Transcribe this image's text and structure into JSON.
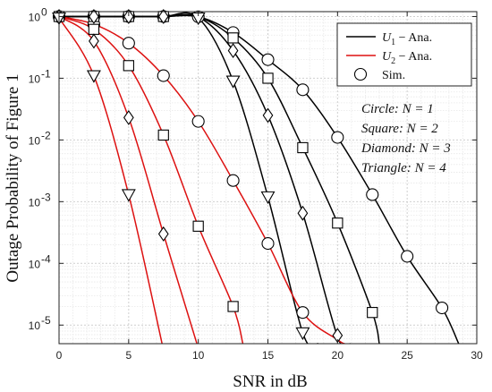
{
  "chart_data": {
    "type": "line",
    "title": "",
    "xlabel": "SNR in dB",
    "ylabel": "Outage Probability of Figure 1",
    "xlim": [
      0,
      30
    ],
    "ylim": [
      5e-06,
      1.2
    ],
    "yscale": "log",
    "grid": true,
    "legend_position": "top-right",
    "x_ticks": [
      "0",
      "5",
      "10",
      "15",
      "20",
      "25",
      "30"
    ],
    "y_ticks": [
      {
        "mant": "10",
        "exp": "0"
      },
      {
        "mant": "10",
        "exp": "-1"
      },
      {
        "mant": "10",
        "exp": "-2"
      },
      {
        "mant": "10",
        "exp": "-3"
      },
      {
        "mant": "10",
        "exp": "-4"
      },
      {
        "mant": "10",
        "exp": "-5"
      }
    ],
    "legend": [
      {
        "label": "U1 − Ana.",
        "sym": "U",
        "sub": "1",
        "rest": " − Ana.",
        "style": "line",
        "color": "#000000"
      },
      {
        "label": "U2 − Ana.",
        "sym": "U",
        "sub": "2",
        "rest": " − Ana.",
        "style": "line",
        "color": "#dd1111"
      },
      {
        "label": "Sim.",
        "sym": "",
        "sub": "",
        "rest": "Sim.",
        "style": "marker",
        "color": "#000000"
      }
    ],
    "annotations": [
      "Circle: N = 1",
      "Square: N = 2",
      "Diamond: N = 3",
      "Triangle: N = 4"
    ],
    "series": [
      {
        "user": "U1",
        "N": 1,
        "marker": "circle",
        "color": "#000000",
        "x": [
          0,
          2.5,
          5,
          7.5,
          10,
          12.5,
          15,
          17.5,
          20,
          22.5,
          25,
          27.5,
          28.7
        ],
        "y": [
          1,
          1,
          1,
          1,
          0.99,
          0.55,
          0.2,
          0.065,
          0.011,
          0.0013,
          0.00013,
          1.9e-05,
          5e-06
        ]
      },
      {
        "user": "U1",
        "N": 2,
        "marker": "square",
        "color": "#000000",
        "x": [
          0,
          2.5,
          5,
          7.5,
          10,
          12.5,
          15,
          17.5,
          20,
          22.5,
          23
        ],
        "y": [
          1,
          1,
          1,
          1,
          0.98,
          0.45,
          0.1,
          0.0075,
          0.00045,
          1.6e-05,
          5e-06
        ]
      },
      {
        "user": "U1",
        "N": 3,
        "marker": "diamond",
        "color": "#000000",
        "x": [
          0,
          2.5,
          5,
          7.5,
          10,
          12.5,
          15,
          17.5,
          20,
          20.9
        ],
        "y": [
          1,
          1,
          1,
          1,
          0.98,
          0.28,
          0.025,
          0.00065,
          6.5e-06,
          5e-06
        ]
      },
      {
        "user": "U1",
        "N": 4,
        "marker": "triangle",
        "color": "#000000",
        "x": [
          0,
          2.5,
          5,
          7.5,
          10,
          12.5,
          15,
          17.5,
          18.6
        ],
        "y": [
          1,
          1,
          1,
          1,
          0.95,
          0.09,
          0.0012,
          7.5e-06,
          5e-06
        ]
      },
      {
        "user": "U2",
        "N": 1,
        "marker": "circle",
        "color": "#dd1111",
        "x": [
          0,
          2.5,
          5,
          7.5,
          10,
          12.5,
          15,
          17.5,
          20,
          20.5
        ],
        "y": [
          1,
          0.75,
          0.37,
          0.11,
          0.02,
          0.0022,
          0.00021,
          1.6e-05,
          5.8e-06,
          5e-06
        ]
      },
      {
        "user": "U2",
        "N": 2,
        "marker": "square",
        "color": "#dd1111",
        "x": [
          0,
          2.5,
          5,
          7.5,
          10,
          12.5,
          13.2
        ],
        "y": [
          1,
          0.62,
          0.16,
          0.012,
          0.0004,
          2e-05,
          5e-06
        ]
      },
      {
        "user": "U2",
        "N": 3,
        "marker": "diamond",
        "color": "#dd1111",
        "x": [
          0,
          2.5,
          5,
          7.5,
          9.9
        ],
        "y": [
          1,
          0.4,
          0.023,
          0.0003,
          5e-06
        ]
      },
      {
        "user": "U2",
        "N": 4,
        "marker": "triangle",
        "color": "#dd1111",
        "x": [
          0,
          2.5,
          5,
          7.4
        ],
        "y": [
          0.95,
          0.11,
          0.0013,
          5e-06
        ]
      }
    ],
    "sim_markers": [
      {
        "marker": "circle",
        "points": [
          [
            0,
            1
          ],
          [
            2.5,
            1
          ],
          [
            5,
            1
          ],
          [
            7.5,
            1
          ],
          [
            10,
            0.99
          ],
          [
            12.5,
            0.55
          ],
          [
            15,
            0.2
          ],
          [
            17.5,
            0.065
          ],
          [
            20,
            0.011
          ],
          [
            22.5,
            0.0013
          ],
          [
            25,
            0.00013
          ],
          [
            27.5,
            1.9e-05
          ],
          [
            2.5,
            0.75
          ],
          [
            5,
            0.37
          ],
          [
            7.5,
            0.11
          ],
          [
            10,
            0.02
          ],
          [
            12.5,
            0.0022
          ],
          [
            15,
            0.00021
          ],
          [
            17.5,
            1.6e-05
          ]
        ]
      },
      {
        "marker": "square",
        "points": [
          [
            0,
            1
          ],
          [
            2.5,
            1
          ],
          [
            5,
            1
          ],
          [
            7.5,
            1
          ],
          [
            12.5,
            0.45
          ],
          [
            15,
            0.1
          ],
          [
            17.5,
            0.0075
          ],
          [
            20,
            0.00045
          ],
          [
            22.5,
            1.6e-05
          ],
          [
            2.5,
            0.62
          ],
          [
            5,
            0.16
          ],
          [
            7.5,
            0.012
          ],
          [
            10,
            0.0004
          ],
          [
            12.5,
            2e-05
          ]
        ]
      },
      {
        "marker": "diamond",
        "points": [
          [
            0,
            1
          ],
          [
            2.5,
            1
          ],
          [
            5,
            1
          ],
          [
            7.5,
            1
          ],
          [
            12.5,
            0.28
          ],
          [
            15,
            0.025
          ],
          [
            17.5,
            0.00065
          ],
          [
            20,
            6.8e-06
          ],
          [
            2.5,
            0.4
          ],
          [
            5,
            0.023
          ],
          [
            7.5,
            0.0003
          ]
        ]
      },
      {
        "marker": "triangle",
        "points": [
          [
            0,
            0.95
          ],
          [
            2.5,
            0.11
          ],
          [
            5,
            0.0013
          ],
          [
            10,
            0.95
          ],
          [
            12.5,
            0.09
          ],
          [
            15,
            0.0012
          ],
          [
            17.5,
            7.5e-06
          ]
        ]
      }
    ]
  }
}
